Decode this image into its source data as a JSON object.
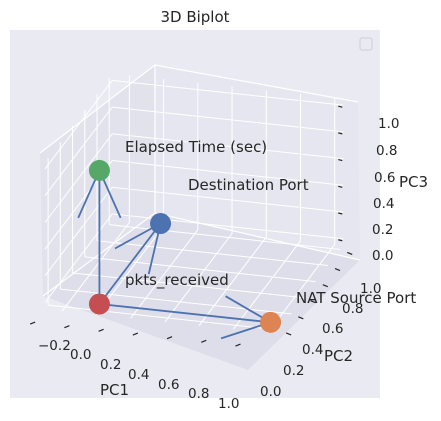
{
  "chart_data": {
    "type": "scatter",
    "projection": "3d",
    "title": "3D Biplot",
    "xlabel": "PC1",
    "ylabel": "PC2",
    "zlabel": "PC3",
    "xlim": [
      -0.3,
      1.05
    ],
    "ylim": [
      -0.05,
      1.05
    ],
    "zlim": [
      -0.05,
      1.05
    ],
    "x_ticks": [
      "−0.2",
      "0.0",
      "0.2",
      "0.4",
      "0.6",
      "0.8",
      "1.0"
    ],
    "y_ticks": [
      "0.0",
      "0.2",
      "0.4",
      "0.6",
      "0.8",
      "1.0"
    ],
    "z_ticks": [
      "0.0",
      "0.2",
      "0.4",
      "0.6",
      "0.8",
      "1.0"
    ],
    "grid": true,
    "legend": {
      "placement": "top-right",
      "entries": []
    },
    "origin": {
      "x": 0,
      "y": 0,
      "z": 0
    },
    "points": [
      {
        "label": "pkts_received",
        "x": 0.0,
        "y": 0.0,
        "z": 0.0,
        "color": "#c44e52"
      },
      {
        "label": "NAT Source Port",
        "x": 1.0,
        "y": 0.0,
        "z": 0.0,
        "color": "#dd8452"
      },
      {
        "label": "Elapsed Time (sec)",
        "x": 0.0,
        "y": 0.0,
        "z": 1.0,
        "color": "#55a868"
      },
      {
        "label": "Destination Port",
        "x": 0.0,
        "y": 1.0,
        "z": 0.0,
        "color": "#4c72b0"
      }
    ],
    "arrow_color": "#4c72b0"
  }
}
